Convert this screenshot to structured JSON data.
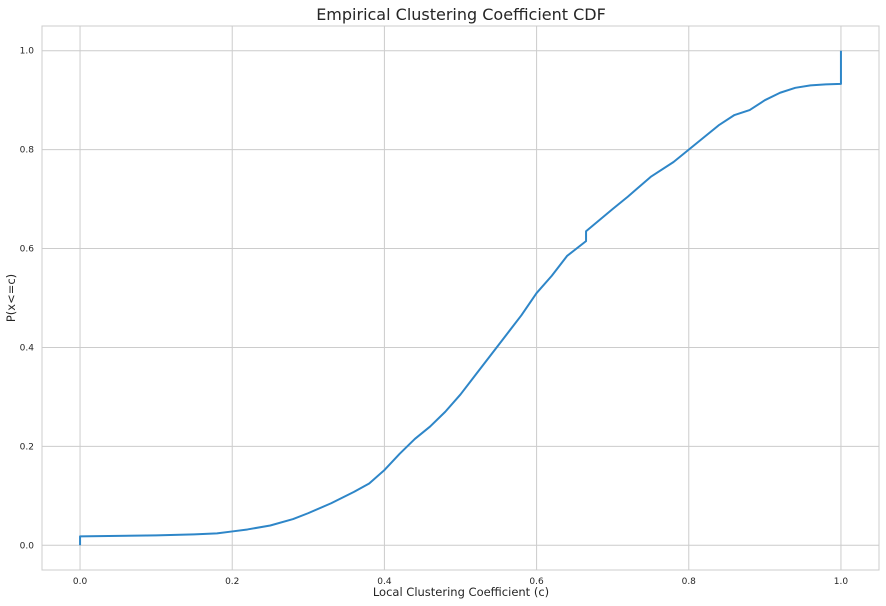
{
  "chart_data": {
    "type": "line",
    "title": "Empirical Clustering Coefficient CDF",
    "xlabel": "Local Clustering Coefficient (c)",
    "ylabel": "P(x<=c)",
    "xlim": [
      -0.05,
      1.05
    ],
    "ylim": [
      -0.05,
      1.05
    ],
    "xticks": [
      0.0,
      0.2,
      0.4,
      0.6,
      0.8,
      1.0
    ],
    "xtick_labels": [
      "0.0",
      "0.2",
      "0.4",
      "0.6",
      "0.8",
      "1.0"
    ],
    "yticks": [
      0.0,
      0.2,
      0.4,
      0.6,
      0.8,
      1.0
    ],
    "ytick_labels": [
      "0.0",
      "0.2",
      "0.4",
      "0.6",
      "0.8",
      "1.0"
    ],
    "grid": true,
    "line_color": "#2e86c8",
    "series": [
      {
        "x": [
          0.0,
          0.0,
          0.05,
          0.1,
          0.15,
          0.18,
          0.2,
          0.22,
          0.25,
          0.28,
          0.3,
          0.33,
          0.36,
          0.38,
          0.4,
          0.42,
          0.44,
          0.46,
          0.48,
          0.5,
          0.52,
          0.54,
          0.56,
          0.58,
          0.6,
          0.62,
          0.64,
          0.665,
          0.665,
          0.7,
          0.72,
          0.75,
          0.78,
          0.8,
          0.82,
          0.84,
          0.86,
          0.88,
          0.9,
          0.92,
          0.94,
          0.96,
          0.98,
          1.0,
          1.0
        ],
        "y": [
          0.0,
          0.018,
          0.019,
          0.02,
          0.022,
          0.024,
          0.028,
          0.032,
          0.04,
          0.053,
          0.065,
          0.085,
          0.108,
          0.125,
          0.152,
          0.185,
          0.215,
          0.24,
          0.27,
          0.305,
          0.345,
          0.385,
          0.425,
          0.465,
          0.51,
          0.545,
          0.585,
          0.615,
          0.635,
          0.68,
          0.705,
          0.745,
          0.775,
          0.8,
          0.825,
          0.85,
          0.87,
          0.88,
          0.9,
          0.915,
          0.925,
          0.93,
          0.932,
          0.933,
          1.0
        ]
      }
    ]
  }
}
